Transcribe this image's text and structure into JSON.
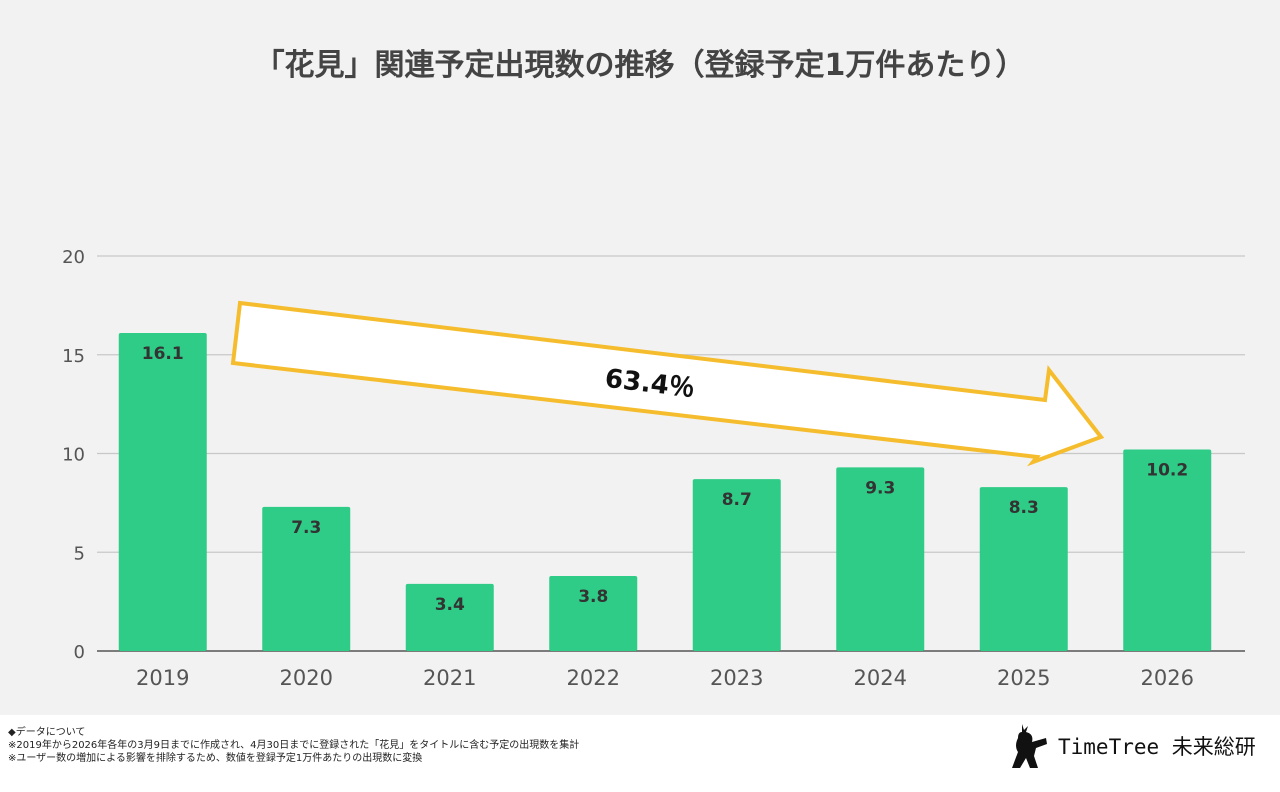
{
  "chart_data": {
    "type": "bar",
    "title": "「花見」関連予定出現数の推移（登録予定1万件あたり）",
    "categories": [
      "2019",
      "2020",
      "2021",
      "2022",
      "2023",
      "2024",
      "2025",
      "2026"
    ],
    "values": [
      16.1,
      7.3,
      3.4,
      3.8,
      8.7,
      9.3,
      8.3,
      10.2
    ],
    "data_labels": [
      "16.1",
      "7.3",
      "3.4",
      "3.8",
      "8.7",
      "9.3",
      "8.3",
      "10.2"
    ],
    "ylim": [
      0,
      20
    ],
    "yticks": [
      0,
      5,
      10,
      15,
      20
    ],
    "grid": true,
    "bar_color": "#2ecc87",
    "annotation": {
      "text": "63.4％",
      "from": "2019",
      "to": "2026",
      "arrow_color": "#f5bd2e"
    }
  },
  "notes": [
    "◆データについて",
    "※2019年から2026年各年の3月9日までに作成され、4月30日までに登録された「花見」をタイトルに含む予定の出現数を集計",
    "※ユーザー数の増加による影響を排除するため、数値を登録予定1万件あたりの出現数に変換"
  ],
  "logo": {
    "text": "TimeTree 未来総研"
  }
}
